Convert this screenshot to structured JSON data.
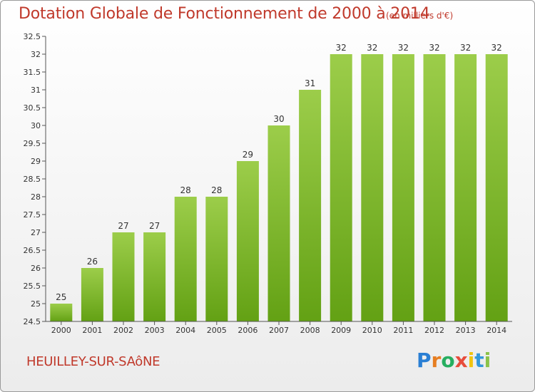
{
  "chart_data": {
    "type": "bar",
    "title": "Dotation Globale de Fonctionnement de 2000 à 2014",
    "subtitle": "(en milliers d'€)",
    "xlabel": "",
    "ylabel": "",
    "categories": [
      "2000",
      "2001",
      "2002",
      "2003",
      "2004",
      "2005",
      "2006",
      "2007",
      "2008",
      "2009",
      "2010",
      "2011",
      "2012",
      "2013",
      "2014"
    ],
    "values": [
      25,
      26,
      27,
      27,
      28,
      28,
      29,
      30,
      31,
      32,
      32,
      32,
      32,
      32,
      32
    ],
    "data_labels": [
      "25",
      "26",
      "27",
      "27",
      "28",
      "28",
      "29",
      "30",
      "31",
      "32",
      "32",
      "32",
      "32",
      "32",
      "32"
    ],
    "ylim": [
      24.5,
      32.5
    ],
    "yticks": [
      "24.5",
      "25",
      "25.5",
      "26",
      "26.5",
      "27",
      "27.5",
      "28",
      "28.5",
      "29",
      "29.5",
      "30",
      "30.5",
      "31",
      "31.5",
      "32",
      "32.5"
    ],
    "grid": false,
    "bar_color_top": "#9ccd4a",
    "bar_color_bottom": "#63a114"
  },
  "footer": {
    "place_name": "HEUILLEY-SUR-SAôNE"
  },
  "logo": {
    "letters": [
      "P",
      "r",
      "o",
      "x",
      "i",
      "t",
      "i"
    ],
    "colors": [
      "#2a7fd4",
      "#e67e22",
      "#27ae60",
      "#e74c3c",
      "#f1c40f",
      "#3498db",
      "#8bc34a"
    ]
  },
  "colors": {
    "title": "#c0392b",
    "axis": "#555555",
    "text": "#333333"
  }
}
